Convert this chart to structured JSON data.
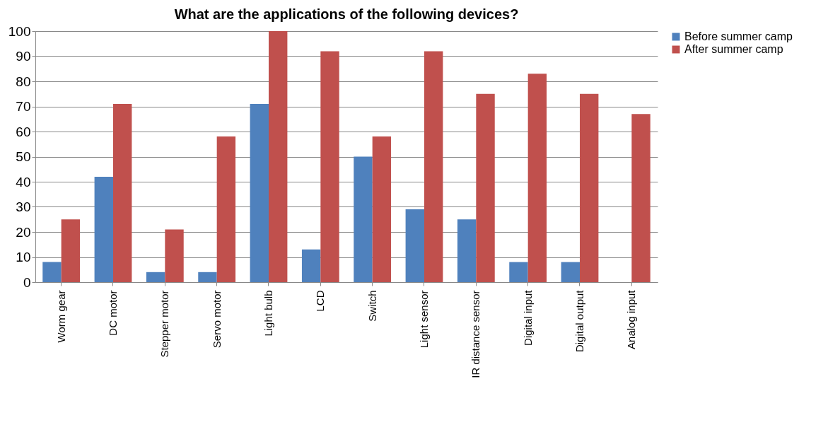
{
  "chart_data": {
    "type": "bar",
    "title": "What are the applications of the following devices?",
    "categories": [
      "Worm gear",
      "DC motor",
      "Stepper motor",
      "Servo motor",
      "Light bulb",
      "LCD",
      "Switch",
      "Light sensor",
      "IR distance sensor",
      "Digital input",
      "Digital output",
      "Analog input"
    ],
    "series": [
      {
        "name": "Before summer camp",
        "color": "#4f81bd",
        "values": [
          8,
          42,
          4,
          4,
          71,
          13,
          50,
          29,
          25,
          8,
          8,
          0
        ]
      },
      {
        "name": "After summer camp",
        "color": "#c0504d",
        "values": [
          25,
          71,
          21,
          58,
          100,
          92,
          58,
          92,
          75,
          83,
          75,
          67
        ]
      }
    ],
    "ylim": [
      0,
      100
    ],
    "yticks": [
      0,
      10,
      20,
      30,
      40,
      50,
      60,
      70,
      80,
      90,
      100
    ],
    "grid": "y",
    "legend": "right"
  }
}
